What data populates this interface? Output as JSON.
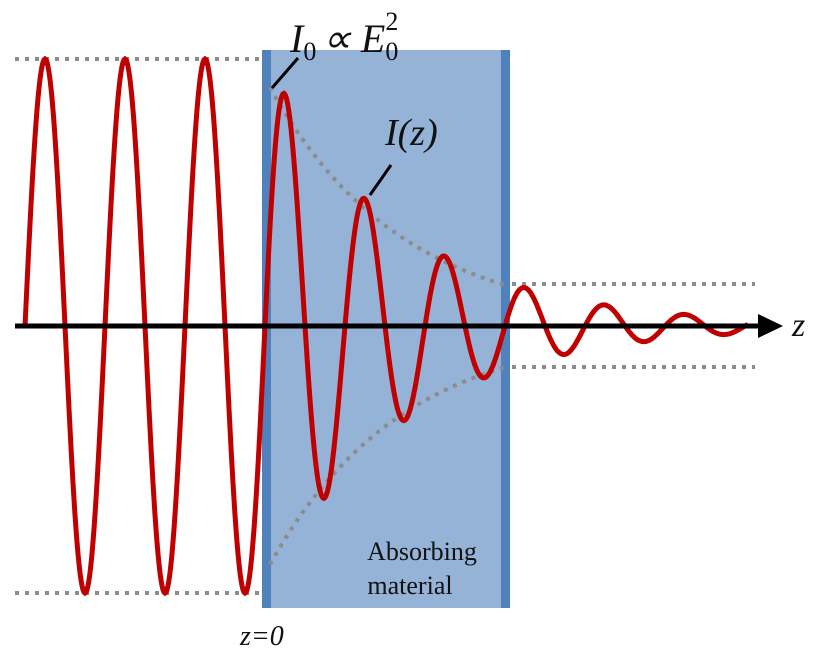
{
  "labels": {
    "initial_intensity": {
      "symbol": "I",
      "subscript": "0",
      "relation": "∝ E",
      "field_subscript": "0",
      "field_power": "2"
    },
    "intensity": "I(z)",
    "material": {
      "line1": "Absorbing",
      "line2": "material"
    },
    "origin": "z=0",
    "axis": "z"
  }
}
